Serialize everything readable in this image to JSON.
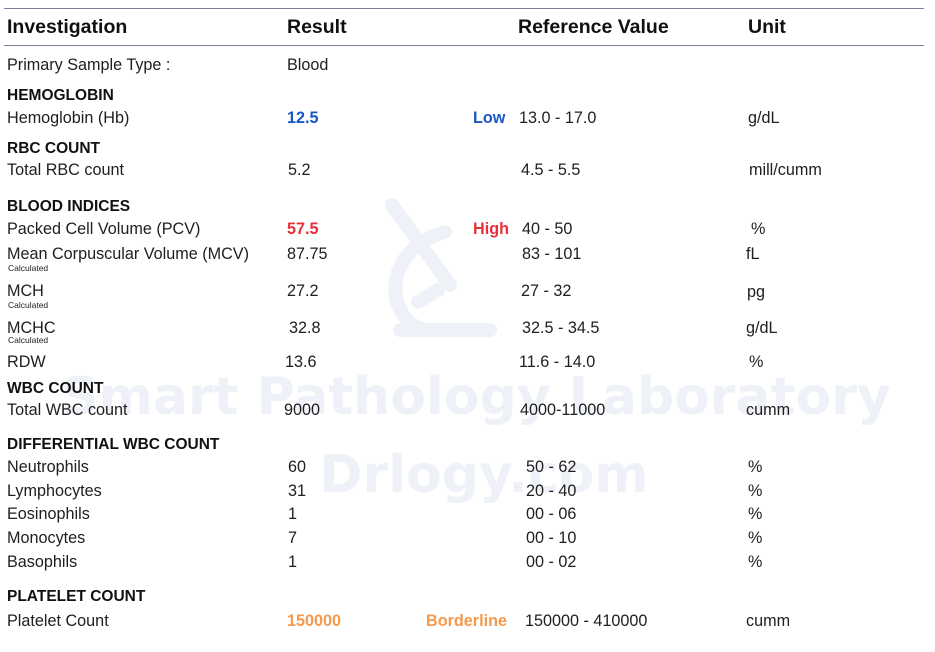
{
  "headers": {
    "investigation": "Investigation",
    "result": "Result",
    "reference": "Reference Value",
    "unit": "Unit"
  },
  "watermark": {
    "line1": "Smart Pathology Laboratory",
    "line2": "Drlogy.com",
    "icon": "microscope-icon"
  },
  "sample": {
    "label": "Primary Sample Type :",
    "value": "Blood"
  },
  "hemoglobin": {
    "title": "HEMOGLOBIN",
    "name": "Hemoglobin (Hb)",
    "result": "12.5",
    "flag": "Low",
    "reference": "13.0 - 17.0",
    "unit": "g/dL"
  },
  "rbc": {
    "title": "RBC COUNT",
    "name": "Total RBC count",
    "result": "5.2",
    "reference": "4.5 - 5.5",
    "unit": "mill/cumm"
  },
  "indices": {
    "title": "BLOOD INDICES",
    "pcv": {
      "name": "Packed Cell Volume (PCV)",
      "result": "57.5",
      "flag": "High",
      "reference": "40 - 50",
      "unit": "%"
    },
    "mcv": {
      "name": "Mean Corpuscular Volume (MCV)",
      "note": "Calculated",
      "result": "87.75",
      "reference": "83 - 101",
      "unit": "fL"
    },
    "mch": {
      "name": "MCH",
      "note": "Calculated",
      "result": "27.2",
      "reference": "27 - 32",
      "unit": "pg"
    },
    "mchc": {
      "name": "MCHC",
      "note": "Calculated",
      "result": "32.8",
      "reference": "32.5 - 34.5",
      "unit": "g/dL"
    },
    "rdw": {
      "name": "RDW",
      "result": "13.6",
      "reference": "11.6 - 14.0",
      "unit": "%"
    }
  },
  "wbc": {
    "title": "WBC COUNT",
    "name": "Total WBC count",
    "result": "9000",
    "reference": "4000-11000",
    "unit": "cumm"
  },
  "differential": {
    "title": "DIFFERENTIAL WBC COUNT",
    "neutrophils": {
      "name": "Neutrophils",
      "result": "60",
      "reference": "50 - 62",
      "unit": "%"
    },
    "lymphocytes": {
      "name": "Lymphocytes",
      "result": "31",
      "reference": "20 - 40",
      "unit": "%"
    },
    "eosinophils": {
      "name": "Eosinophils",
      "result": "1",
      "reference": "00 - 06",
      "unit": "%"
    },
    "monocytes": {
      "name": "Monocytes",
      "result": "7",
      "reference": "00 - 10",
      "unit": "%"
    },
    "basophils": {
      "name": "Basophils",
      "result": "1",
      "reference": "00 - 02",
      "unit": "%"
    }
  },
  "platelet": {
    "title": "PLATELET COUNT",
    "name": "Platelet Count",
    "result": "150000",
    "flag": "Borderline",
    "reference": "150000 - 410000",
    "unit": "cumm"
  },
  "colors": {
    "low": "#1a57c6",
    "high": "#e8303b",
    "borderline": "#f39a4e",
    "watermark": "#eef1f8"
  }
}
